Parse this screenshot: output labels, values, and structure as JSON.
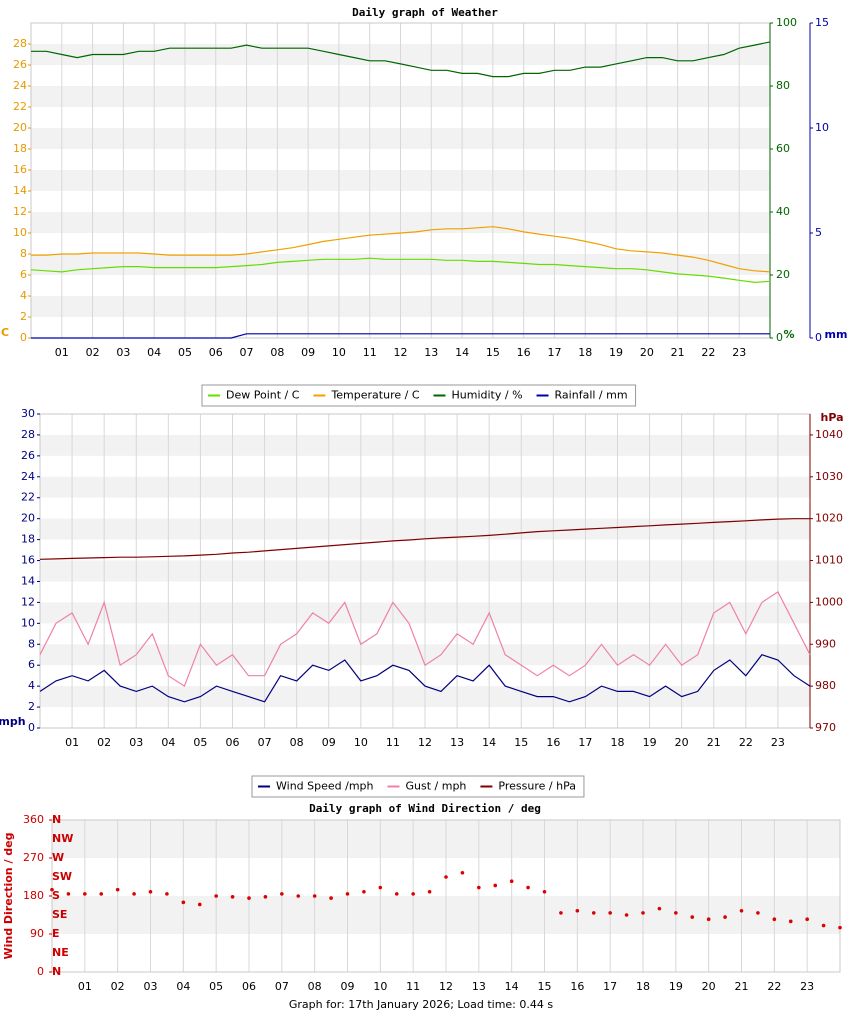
{
  "chart_data": [
    {
      "type": "line",
      "title": "Daily graph of Weather",
      "x": [
        0,
        0.5,
        1,
        1.5,
        2,
        2.5,
        3,
        3.5,
        4,
        4.5,
        5,
        5.5,
        6,
        6.5,
        7,
        7.5,
        8,
        8.5,
        9,
        9.5,
        10,
        10.5,
        11,
        11.5,
        12,
        12.5,
        13,
        13.5,
        14,
        14.5,
        15,
        15.5,
        16,
        16.5,
        17,
        17.5,
        18,
        18.5,
        19,
        19.5,
        20,
        20.5,
        21,
        21.5,
        22,
        22.5,
        23,
        23.5,
        24
      ],
      "xlim": [
        0,
        24
      ],
      "xticks": [
        {
          "value": 1,
          "label": "01"
        },
        {
          "value": 2,
          "label": "02"
        },
        {
          "value": 3,
          "label": "03"
        },
        {
          "value": 4,
          "label": "04"
        },
        {
          "value": 5,
          "label": "05"
        },
        {
          "value": 6,
          "label": "06"
        },
        {
          "value": 7,
          "label": "07"
        },
        {
          "value": 8,
          "label": "08"
        },
        {
          "value": 9,
          "label": "09"
        },
        {
          "value": 10,
          "label": "10"
        },
        {
          "value": 11,
          "label": "11"
        },
        {
          "value": 12,
          "label": "12"
        },
        {
          "value": 13,
          "label": "13"
        },
        {
          "value": 14,
          "label": "14"
        },
        {
          "value": 15,
          "label": "15"
        },
        {
          "value": 16,
          "label": "16"
        },
        {
          "value": 17,
          "label": "17"
        },
        {
          "value": 18,
          "label": "18"
        },
        {
          "value": 19,
          "label": "19"
        },
        {
          "value": 20,
          "label": "20"
        },
        {
          "value": 21,
          "label": "21"
        },
        {
          "value": 22,
          "label": "22"
        },
        {
          "value": 23,
          "label": "23"
        }
      ],
      "ylim": [
        0,
        30
      ],
      "yticks": [
        0,
        2,
        4,
        6,
        8,
        10,
        12,
        14,
        16,
        18,
        20,
        22,
        24,
        26,
        28
      ],
      "y_label": "C",
      "y_color": "#e69a00",
      "y2lim": [
        0,
        100
      ],
      "y2ticks": [
        0,
        20,
        40,
        60,
        80,
        100
      ],
      "y2_label": "%",
      "y2_color": "#006600",
      "y3lim": [
        0,
        15
      ],
      "y3ticks": [
        0,
        5,
        10,
        15
      ],
      "y3_label": "mm",
      "y3_color": "#0000aa",
      "grid": true,
      "band_color": "#f2f2f2",
      "legend": "bottom",
      "series": [
        {
          "name": "Dew Point / C",
          "color": "#66dd00",
          "values": [
            6.5,
            6.4,
            6.3,
            6.5,
            6.6,
            6.7,
            6.8,
            6.8,
            6.7,
            6.7,
            6.7,
            6.7,
            6.7,
            6.8,
            6.9,
            7.0,
            7.2,
            7.3,
            7.4,
            7.5,
            7.5,
            7.5,
            7.6,
            7.5,
            7.5,
            7.5,
            7.5,
            7.4,
            7.4,
            7.3,
            7.3,
            7.2,
            7.1,
            7.0,
            7.0,
            6.9,
            6.8,
            6.7,
            6.6,
            6.6,
            6.5,
            6.3,
            6.1,
            6.0,
            5.9,
            5.7,
            5.5,
            5.3,
            5.4
          ]
        },
        {
          "name": "Temperature / C",
          "color": "#f0a000",
          "values": [
            7.9,
            7.9,
            8.0,
            8.0,
            8.1,
            8.1,
            8.1,
            8.1,
            8.0,
            7.9,
            7.9,
            7.9,
            7.9,
            7.9,
            8.0,
            8.2,
            8.4,
            8.6,
            8.9,
            9.2,
            9.4,
            9.6,
            9.8,
            9.9,
            10.0,
            10.1,
            10.3,
            10.4,
            10.4,
            10.5,
            10.6,
            10.4,
            10.1,
            9.9,
            9.7,
            9.5,
            9.2,
            8.9,
            8.5,
            8.3,
            8.2,
            8.1,
            7.9,
            7.7,
            7.4,
            7.0,
            6.6,
            6.4,
            6.3
          ]
        },
        {
          "name": "Humidity / %",
          "color": "#006600",
          "axis": "y2",
          "values": [
            91,
            91,
            90,
            89,
            90,
            90,
            90,
            91,
            91,
            92,
            92,
            92,
            92,
            92,
            93,
            92,
            92,
            92,
            92,
            91,
            90,
            89,
            88,
            88,
            87,
            86,
            85,
            85,
            84,
            84,
            83,
            83,
            84,
            84,
            85,
            85,
            86,
            86,
            87,
            88,
            89,
            89,
            88,
            88,
            89,
            90,
            92,
            93,
            94
          ]
        },
        {
          "name": "Rainfall / mm",
          "color": "#0000aa",
          "axis": "y3",
          "values": [
            0,
            0,
            0,
            0,
            0,
            0,
            0,
            0,
            0,
            0,
            0,
            0,
            0,
            0,
            0.2,
            0.2,
            0.2,
            0.2,
            0.2,
            0.2,
            0.2,
            0.2,
            0.2,
            0.2,
            0.2,
            0.2,
            0.2,
            0.2,
            0.2,
            0.2,
            0.2,
            0.2,
            0.2,
            0.2,
            0.2,
            0.2,
            0.2,
            0.2,
            0.2,
            0.2,
            0.2,
            0.2,
            0.2,
            0.2,
            0.2,
            0.2,
            0.2,
            0.2,
            0.2
          ]
        }
      ]
    },
    {
      "type": "line",
      "x": [
        0,
        0.5,
        1,
        1.5,
        2,
        2.5,
        3,
        3.5,
        4,
        4.5,
        5,
        5.5,
        6,
        6.5,
        7,
        7.5,
        8,
        8.5,
        9,
        9.5,
        10,
        10.5,
        11,
        11.5,
        12,
        12.5,
        13,
        13.5,
        14,
        14.5,
        15,
        15.5,
        16,
        16.5,
        17,
        17.5,
        18,
        18.5,
        19,
        19.5,
        20,
        20.5,
        21,
        21.5,
        22,
        22.5,
        23,
        23.5,
        24
      ],
      "xlim": [
        0,
        24
      ],
      "xticks": [
        {
          "value": 1,
          "label": "01"
        },
        {
          "value": 2,
          "label": "02"
        },
        {
          "value": 3,
          "label": "03"
        },
        {
          "value": 4,
          "label": "04"
        },
        {
          "value": 5,
          "label": "05"
        },
        {
          "value": 6,
          "label": "06"
        },
        {
          "value": 7,
          "label": "07"
        },
        {
          "value": 8,
          "label": "08"
        },
        {
          "value": 9,
          "label": "09"
        },
        {
          "value": 10,
          "label": "10"
        },
        {
          "value": 11,
          "label": "11"
        },
        {
          "value": 12,
          "label": "12"
        },
        {
          "value": 13,
          "label": "13"
        },
        {
          "value": 14,
          "label": "14"
        },
        {
          "value": 15,
          "label": "15"
        },
        {
          "value": 16,
          "label": "16"
        },
        {
          "value": 17,
          "label": "17"
        },
        {
          "value": 18,
          "label": "18"
        },
        {
          "value": 19,
          "label": "19"
        },
        {
          "value": 20,
          "label": "20"
        },
        {
          "value": 21,
          "label": "21"
        },
        {
          "value": 22,
          "label": "22"
        },
        {
          "value": 23,
          "label": "23"
        }
      ],
      "ylim": [
        0,
        30
      ],
      "yticks": [
        0,
        2,
        4,
        6,
        8,
        10,
        12,
        14,
        16,
        18,
        20,
        22,
        24,
        26,
        28,
        30
      ],
      "y_label": "mph",
      "y_color": "#000080",
      "y2lim": [
        970,
        1045
      ],
      "y2ticks": [
        970,
        980,
        990,
        1000,
        1010,
        1020,
        1030,
        1040
      ],
      "y2_label": "hPa",
      "y2_color": "#800000",
      "grid": true,
      "band_color": "#f2f2f2",
      "legend": "bottom",
      "series": [
        {
          "name": "Wind Speed /mph",
          "color": "#000080",
          "values": [
            3.5,
            4.5,
            5.0,
            4.5,
            5.5,
            4.0,
            3.5,
            4.0,
            3.0,
            2.5,
            3.0,
            4.0,
            3.5,
            3.0,
            2.5,
            5.0,
            4.5,
            6.0,
            5.5,
            6.5,
            4.5,
            5.0,
            6.0,
            5.5,
            4.0,
            3.5,
            5.0,
            4.5,
            6.0,
            4.0,
            3.5,
            3.0,
            3.0,
            2.5,
            3.0,
            4.0,
            3.5,
            3.5,
            3.0,
            4.0,
            3.0,
            3.5,
            5.5,
            6.5,
            5.0,
            7.0,
            6.5,
            5.0,
            4.0
          ]
        },
        {
          "name": "Gust / mph",
          "color": "#f080a8",
          "values": [
            7,
            10,
            11,
            8,
            12,
            6,
            7,
            9,
            5,
            4,
            8,
            6,
            7,
            5,
            5,
            8,
            9,
            11,
            10,
            12,
            8,
            9,
            12,
            10,
            6,
            7,
            9,
            8,
            11,
            7,
            6,
            5,
            6,
            5,
            6,
            8,
            6,
            7,
            6,
            8,
            6,
            7,
            11,
            12,
            9,
            12,
            13,
            10,
            7
          ]
        },
        {
          "name": "Pressure / hPa",
          "color": "#800000",
          "axis": "y2",
          "values": [
            1010.3,
            1010.4,
            1010.5,
            1010.6,
            1010.7,
            1010.8,
            1010.8,
            1010.9,
            1011.0,
            1011.1,
            1011.3,
            1011.5,
            1011.8,
            1012.0,
            1012.3,
            1012.6,
            1012.9,
            1013.2,
            1013.5,
            1013.8,
            1014.1,
            1014.4,
            1014.7,
            1014.9,
            1015.2,
            1015.4,
            1015.6,
            1015.8,
            1016.0,
            1016.3,
            1016.6,
            1016.9,
            1017.1,
            1017.3,
            1017.5,
            1017.7,
            1017.9,
            1018.1,
            1018.3,
            1018.5,
            1018.7,
            1018.9,
            1019.1,
            1019.3,
            1019.5,
            1019.7,
            1019.9,
            1020.0,
            1020.0
          ]
        }
      ]
    },
    {
      "type": "scatter",
      "title": "Daily graph of Wind Direction / deg",
      "x": [
        0,
        0.5,
        1,
        1.5,
        2,
        2.5,
        3,
        3.5,
        4,
        4.5,
        5,
        5.5,
        6,
        6.5,
        7,
        7.5,
        8,
        8.5,
        9,
        9.5,
        10,
        10.5,
        11,
        11.5,
        12,
        12.5,
        13,
        13.5,
        14,
        14.5,
        15,
        15.5,
        16,
        16.5,
        17,
        17.5,
        18,
        18.5,
        19,
        19.5,
        20,
        20.5,
        21,
        21.5,
        22,
        22.5,
        23,
        23.5,
        24
      ],
      "xlim": [
        0,
        24
      ],
      "xticks": [
        {
          "value": 1,
          "label": "01"
        },
        {
          "value": 2,
          "label": "02"
        },
        {
          "value": 3,
          "label": "03"
        },
        {
          "value": 4,
          "label": "04"
        },
        {
          "value": 5,
          "label": "05"
        },
        {
          "value": 6,
          "label": "06"
        },
        {
          "value": 7,
          "label": "07"
        },
        {
          "value": 8,
          "label": "08"
        },
        {
          "value": 9,
          "label": "09"
        },
        {
          "value": 10,
          "label": "10"
        },
        {
          "value": 11,
          "label": "11"
        },
        {
          "value": 12,
          "label": "12"
        },
        {
          "value": 13,
          "label": "13"
        },
        {
          "value": 14,
          "label": "14"
        },
        {
          "value": 15,
          "label": "15"
        },
        {
          "value": 16,
          "label": "16"
        },
        {
          "value": 17,
          "label": "17"
        },
        {
          "value": 18,
          "label": "18"
        },
        {
          "value": 19,
          "label": "19"
        },
        {
          "value": 20,
          "label": "20"
        },
        {
          "value": 21,
          "label": "21"
        },
        {
          "value": 22,
          "label": "22"
        },
        {
          "value": 23,
          "label": "23"
        }
      ],
      "ylim": [
        0,
        360
      ],
      "yticks": [
        0,
        90,
        180,
        270,
        360
      ],
      "y_label": "Wind Direction / deg",
      "y_color": "#cc0000",
      "compass_ticks": [
        {
          "value": 0,
          "label": "N"
        },
        {
          "value": 45,
          "label": "NE"
        },
        {
          "value": 90,
          "label": "E"
        },
        {
          "value": 135,
          "label": "SE"
        },
        {
          "value": 180,
          "label": "S"
        },
        {
          "value": 225,
          "label": "SW"
        },
        {
          "value": 270,
          "label": "W"
        },
        {
          "value": 315,
          "label": "NW"
        },
        {
          "value": 360,
          "label": "N"
        }
      ],
      "grid": true,
      "band_color": "#f2f2f2",
      "color": "#dd0000",
      "values": [
        195,
        185,
        185,
        185,
        195,
        185,
        190,
        185,
        165,
        160,
        180,
        178,
        175,
        178,
        185,
        180,
        180,
        175,
        185,
        190,
        200,
        185,
        185,
        190,
        225,
        235,
        200,
        205,
        215,
        200,
        190,
        140,
        145,
        140,
        140,
        135,
        140,
        150,
        140,
        130,
        125,
        130,
        145,
        140,
        125,
        120,
        125,
        110,
        105
      ]
    }
  ],
  "footer": "Graph for: 17th January 2026; Load time: 0.44 s"
}
